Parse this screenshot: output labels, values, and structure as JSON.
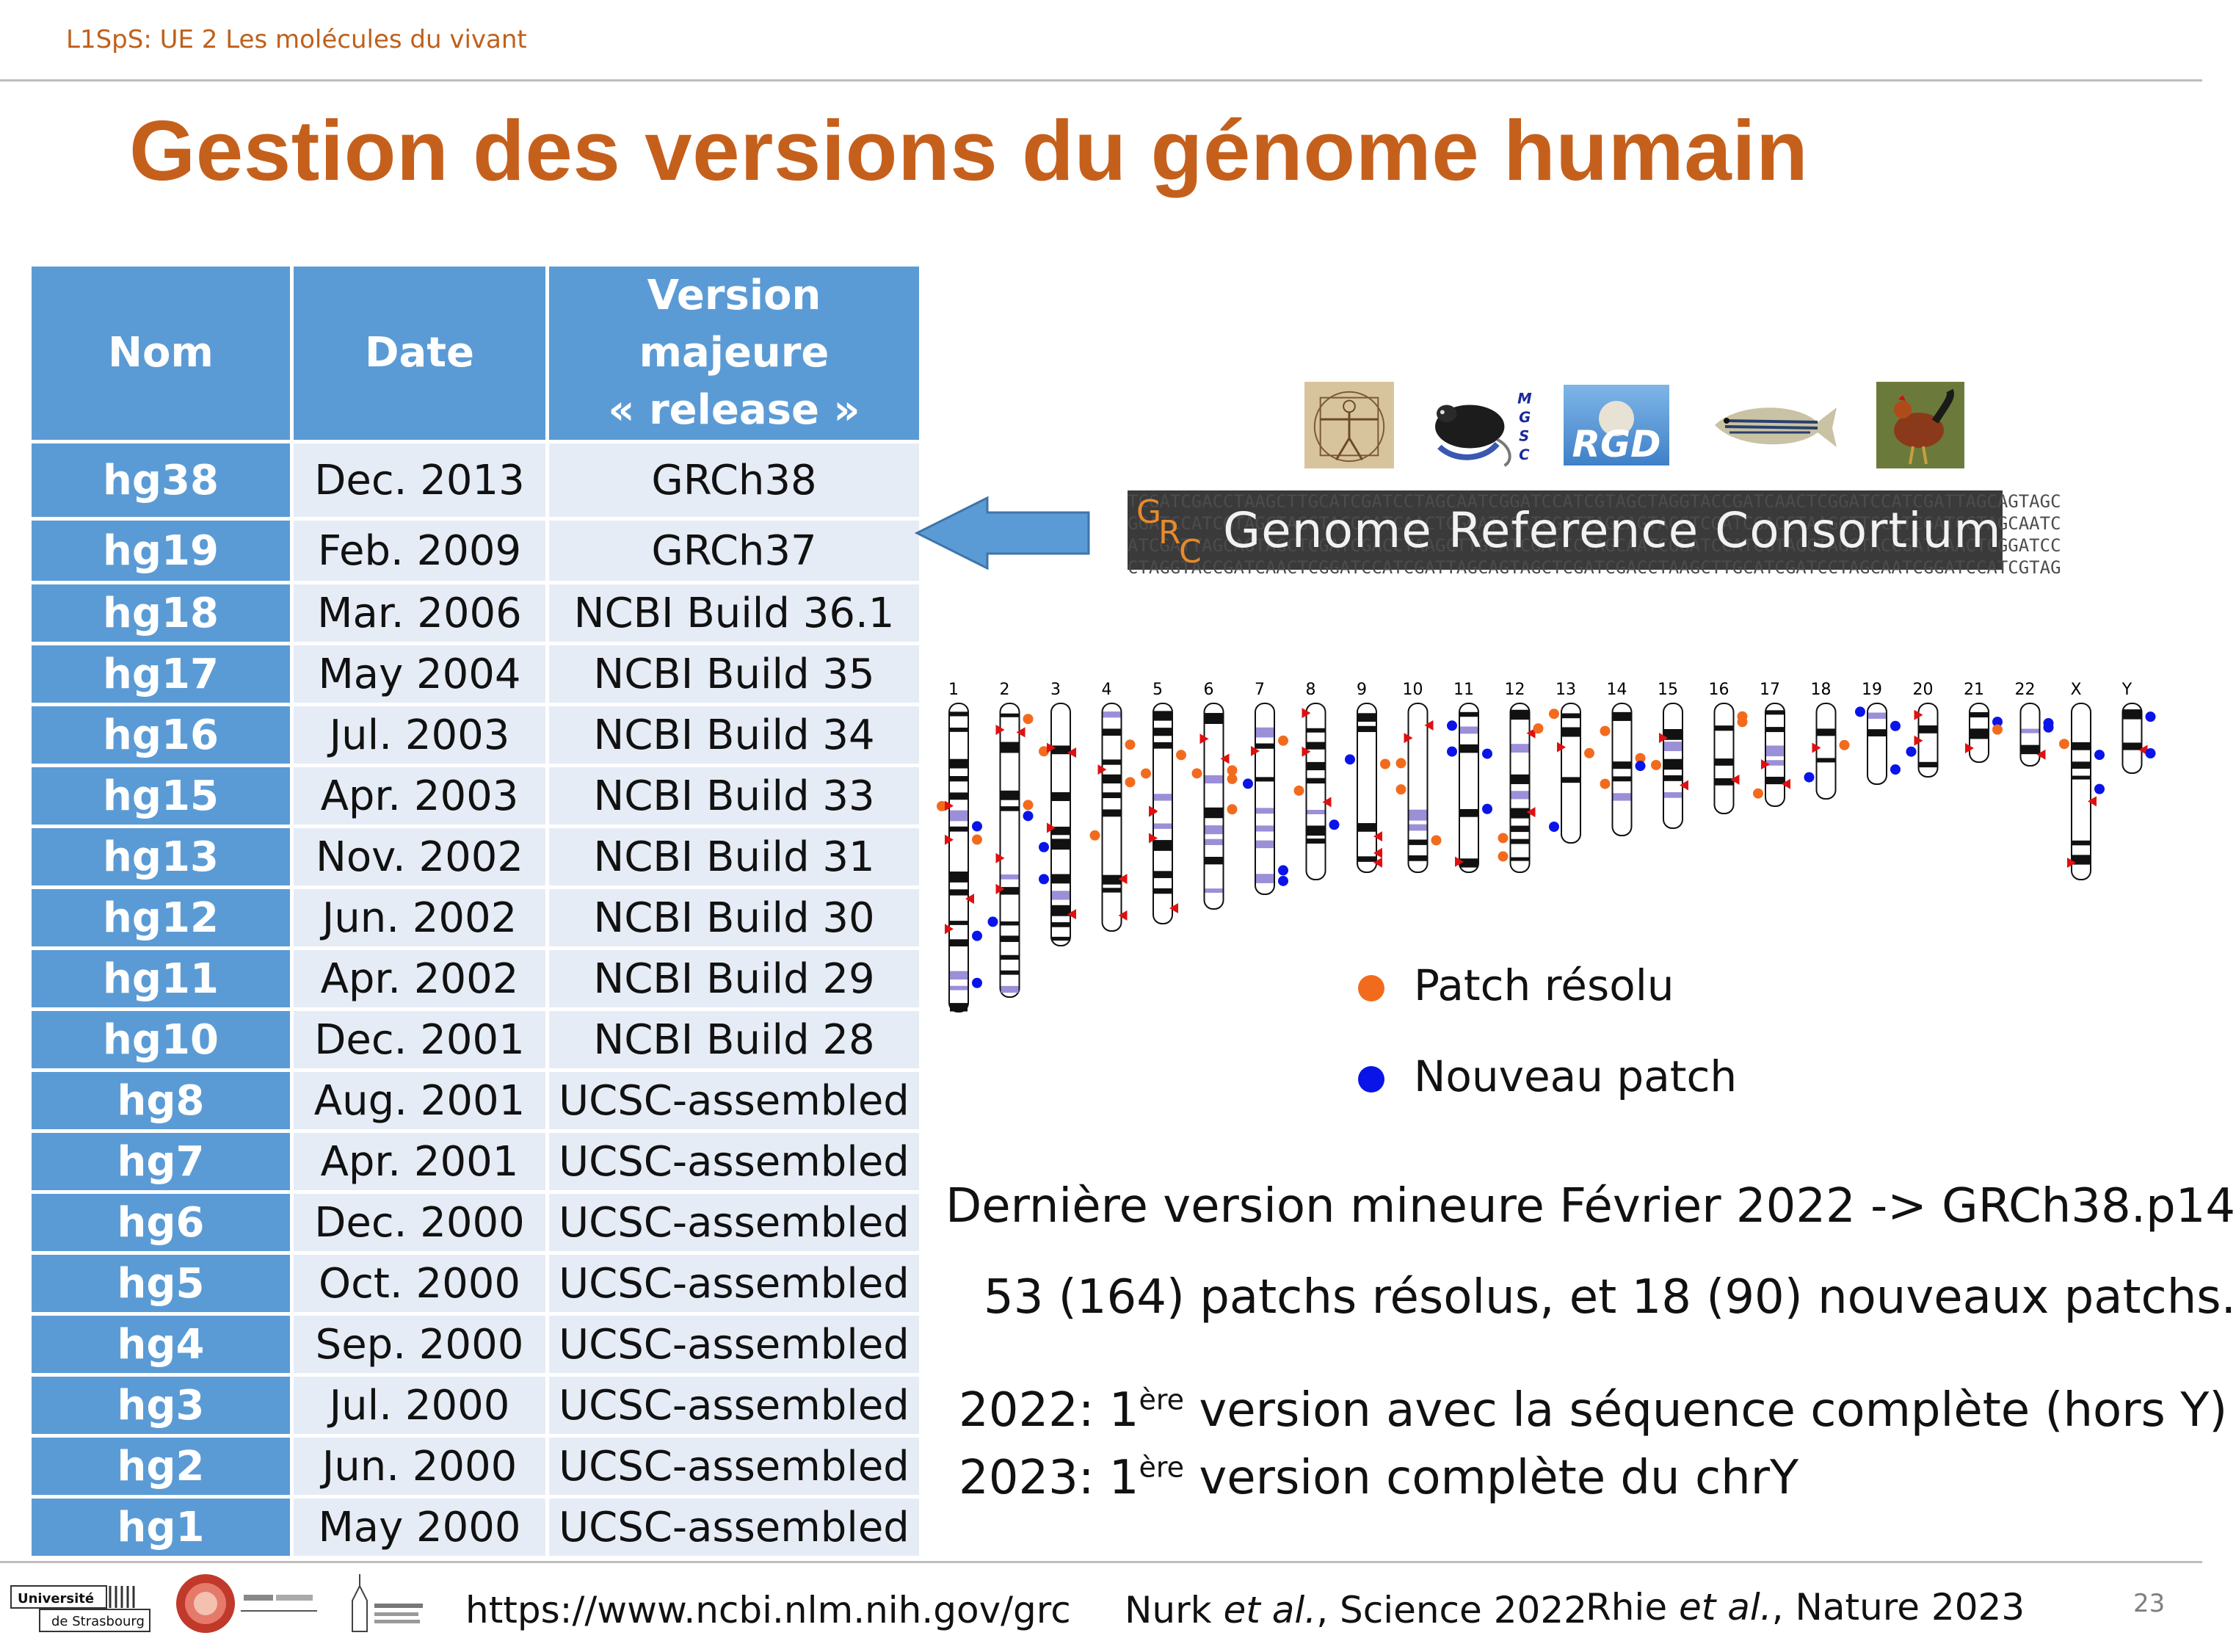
{
  "header": {
    "course": "L1SpS: UE 2 Les molécules du vivant"
  },
  "title": "Gestion des versions du génome humain",
  "table": {
    "headers": [
      "Nom",
      "Date",
      "Version majeure",
      "« release »"
    ],
    "rows": [
      {
        "name": "hg38",
        "date": "Dec. 2013",
        "release": "GRCh38"
      },
      {
        "name": "hg19",
        "date": "Feb. 2009",
        "release": "GRCh37"
      },
      {
        "name": "hg18",
        "date": "Mar. 2006",
        "release": "NCBI Build 36.1"
      },
      {
        "name": "hg17",
        "date": "May 2004",
        "release": "NCBI Build 35"
      },
      {
        "name": "hg16",
        "date": "Jul. 2003",
        "release": "NCBI Build 34"
      },
      {
        "name": "hg15",
        "date": "Apr. 2003",
        "release": "NCBI Build 33"
      },
      {
        "name": "hg13",
        "date": "Nov. 2002",
        "release": "NCBI Build 31"
      },
      {
        "name": "hg12",
        "date": "Jun. 2002",
        "release": "NCBI Build 30"
      },
      {
        "name": "hg11",
        "date": "Apr. 2002",
        "release": "NCBI Build 29"
      },
      {
        "name": "hg10",
        "date": "Dec. 2001",
        "release": "NCBI Build 28"
      },
      {
        "name": "hg8",
        "date": "Aug. 2001",
        "release": "UCSC-assembled"
      },
      {
        "name": "hg7",
        "date": "Apr. 2001",
        "release": "UCSC-assembled"
      },
      {
        "name": "hg6",
        "date": "Dec. 2000",
        "release": "UCSC-assembled"
      },
      {
        "name": "hg5",
        "date": "Oct. 2000",
        "release": "UCSC-assembled"
      },
      {
        "name": "hg4",
        "date": "Sep. 2000",
        "release": "UCSC-assembled"
      },
      {
        "name": "hg3",
        "date": "Jul. 2000",
        "release": "UCSC-assembled"
      },
      {
        "name": "hg2",
        "date": "Jun. 2000",
        "release": "UCSC-assembled"
      },
      {
        "name": "hg1",
        "date": "May 2000",
        "release": "UCSC-assembled"
      }
    ]
  },
  "consortium": {
    "banner_name": "Genome Reference Consortium",
    "logo_letters": [
      "G",
      "R",
      "C"
    ],
    "mgsc_letters": [
      "M",
      "G",
      "S",
      "C"
    ],
    "rgd_text": "RGD"
  },
  "ideogram": {
    "chromosome_labels": [
      "1",
      "2",
      "3",
      "4",
      "5",
      "6",
      "7",
      "8",
      "9",
      "10",
      "11",
      "12",
      "13",
      "14",
      "15",
      "16",
      "17",
      "18",
      "19",
      "20",
      "21",
      "22",
      "X",
      "Y"
    ]
  },
  "legend": {
    "resolved": {
      "label": "Patch résolu",
      "color": "#f26b1d"
    },
    "new": {
      "label": "Nouveau patch",
      "color": "#0a14e8"
    }
  },
  "notes": {
    "minor_version": "Dernière version mineure Février 2022 -> GRCh38.p14",
    "patches": "53 (164) patchs résolus, et 18 (90) nouveaux patchs.",
    "line2022_prefix": "2022: 1",
    "line2022_sup": "ère",
    "line2022_rest": " version avec la séquence complète (hors Y)",
    "line2023_prefix": "2023: 1",
    "line2023_sup": "ère",
    "line2023_rest": " version complète du chrY"
  },
  "footer": {
    "url": "https://www.ncbi.nlm.nih.gov/grc",
    "ref1_author": "Nurk ",
    "ref1_etal": "et al.",
    "ref1_rest": ", Science 2022",
    "ref2_author": "Rhie ",
    "ref2_etal": "et al.",
    "ref2_rest": ", Nature 2023",
    "page_number": "23",
    "university_line1": "Université",
    "university_line2": "de Strasbourg"
  },
  "colors": {
    "title": "#c5601c",
    "table_header": "#5b9bd5",
    "table_cell": "#e6ecf6",
    "arrow": "#5b9bd5"
  }
}
